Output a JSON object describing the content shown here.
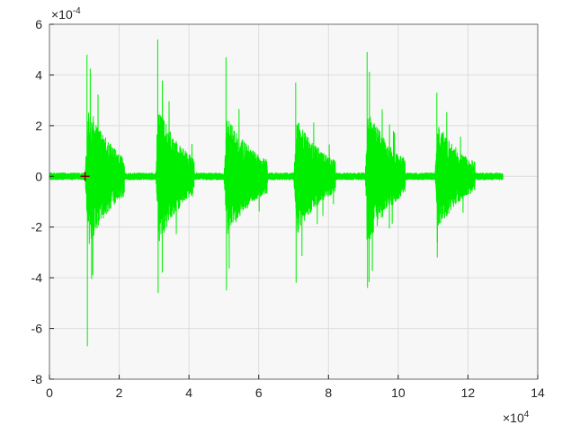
{
  "chart_data": {
    "type": "line",
    "title": "",
    "xlabel": "",
    "ylabel": "",
    "x_range": [
      0,
      140000
    ],
    "y_range": [
      -0.0008,
      0.0006
    ],
    "x_ticks": [
      0,
      20000,
      40000,
      60000,
      80000,
      100000,
      120000,
      140000
    ],
    "x_tick_labels": [
      "0",
      "2",
      "4",
      "6",
      "8",
      "10",
      "12",
      "14"
    ],
    "y_ticks": [
      -0.0008,
      -0.0006,
      -0.0004,
      -0.0002,
      0,
      0.0002,
      0.0004,
      0.0006
    ],
    "y_tick_labels": [
      "-8",
      "-6",
      "-4",
      "-2",
      "0",
      "2",
      "4",
      "6"
    ],
    "x_exponent": {
      "base": "×10",
      "power": "4"
    },
    "y_exponent": {
      "base": "×10",
      "power": "-4"
    },
    "grid": true,
    "series": [
      {
        "color": "#00ee00",
        "x_start": 0,
        "x_end": 130000,
        "noise_floor_amplitude": 1e-05,
        "bursts": [
          {
            "x_start": 10200,
            "x_end": 21500,
            "peak_max": 0.00048,
            "peak_min": -0.00067,
            "typical": 0.00032
          },
          {
            "x_start": 30500,
            "x_end": 41500,
            "peak_max": 0.00054,
            "peak_min": -0.00046,
            "typical": 0.0003
          },
          {
            "x_start": 50000,
            "x_end": 62500,
            "peak_max": 0.00047,
            "peak_min": -0.00045,
            "typical": 0.00027
          },
          {
            "x_start": 70000,
            "x_end": 82000,
            "peak_max": 0.00037,
            "peak_min": -0.00042,
            "typical": 0.00026
          },
          {
            "x_start": 90500,
            "x_end": 102000,
            "peak_max": 0.00049,
            "peak_min": -0.00044,
            "typical": 0.0003
          },
          {
            "x_start": 110500,
            "x_end": 122000,
            "peak_max": 0.00033,
            "peak_min": -0.00032,
            "typical": 0.00024
          }
        ]
      }
    ],
    "marker": {
      "x": 10200,
      "y": 0,
      "symbol": "+",
      "color": "#7a0000"
    }
  },
  "colors": {
    "plot_background": "#f7f7f7",
    "grid": "#dcdcdc",
    "axis": "#262626",
    "signal": "#00ee00"
  }
}
